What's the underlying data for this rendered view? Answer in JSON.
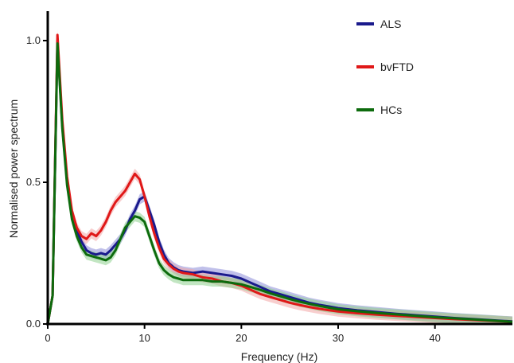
{
  "chart_data": {
    "type": "line",
    "title": "",
    "xlabel": "Frequency (Hz)",
    "ylabel": "Normalised power spectrum",
    "xlim": [
      0,
      48
    ],
    "ylim": [
      0,
      1.1
    ],
    "x_ticks": [
      0,
      10,
      20,
      30,
      40
    ],
    "x_tick_labels": [
      "0",
      "10",
      "20",
      "30",
      "40"
    ],
    "y_ticks": [
      0.0,
      0.5,
      1.0
    ],
    "y_tick_labels": [
      "0.0",
      "0.5",
      "1.0"
    ],
    "grid": false,
    "legend_position": "top-right",
    "series": [
      {
        "name": "ALS",
        "color": "#1a1a8c",
        "band_color": "#8c8cd9",
        "x": [
          0,
          0.5,
          1,
          1.5,
          2,
          2.5,
          3,
          3.5,
          4,
          4.5,
          5,
          5.5,
          6,
          6.5,
          7,
          7.5,
          8,
          8.5,
          9,
          9.5,
          10,
          10.5,
          11,
          11.5,
          12,
          12.5,
          13,
          13.5,
          14,
          15,
          16,
          17,
          18,
          19,
          20,
          21,
          22,
          23,
          24,
          25,
          26,
          27,
          28,
          29,
          30,
          32,
          34,
          36,
          38,
          40,
          42,
          44,
          46,
          48
        ],
        "values": [
          0.0,
          0.1,
          1.0,
          0.7,
          0.5,
          0.38,
          0.33,
          0.29,
          0.26,
          0.25,
          0.245,
          0.25,
          0.245,
          0.26,
          0.28,
          0.3,
          0.33,
          0.37,
          0.4,
          0.44,
          0.45,
          0.4,
          0.35,
          0.29,
          0.245,
          0.215,
          0.2,
          0.19,
          0.185,
          0.18,
          0.185,
          0.18,
          0.175,
          0.17,
          0.16,
          0.145,
          0.13,
          0.115,
          0.105,
          0.095,
          0.085,
          0.075,
          0.068,
          0.062,
          0.056,
          0.048,
          0.042,
          0.036,
          0.031,
          0.026,
          0.021,
          0.017,
          0.013,
          0.009
        ]
      },
      {
        "name": "bvFTD",
        "color": "#e01818",
        "band_color": "#f2a6a6",
        "x": [
          0,
          0.5,
          1,
          1.5,
          2,
          2.5,
          3,
          3.5,
          4,
          4.5,
          5,
          5.5,
          6,
          6.5,
          7,
          7.5,
          8,
          8.5,
          9,
          9.5,
          10,
          10.5,
          11,
          11.5,
          12,
          12.5,
          13,
          13.5,
          14,
          15,
          16,
          17,
          18,
          19,
          20,
          21,
          22,
          23,
          24,
          25,
          26,
          27,
          28,
          29,
          30,
          32,
          34,
          36,
          38,
          40,
          42,
          44,
          46,
          48
        ],
        "values": [
          0.0,
          0.1,
          1.02,
          0.72,
          0.52,
          0.4,
          0.34,
          0.31,
          0.3,
          0.32,
          0.31,
          0.33,
          0.36,
          0.4,
          0.43,
          0.45,
          0.47,
          0.5,
          0.53,
          0.51,
          0.45,
          0.38,
          0.32,
          0.27,
          0.23,
          0.21,
          0.195,
          0.185,
          0.18,
          0.175,
          0.165,
          0.16,
          0.15,
          0.145,
          0.135,
          0.12,
          0.105,
          0.095,
          0.085,
          0.075,
          0.067,
          0.06,
          0.054,
          0.049,
          0.044,
          0.038,
          0.033,
          0.029,
          0.025,
          0.021,
          0.017,
          0.014,
          0.011,
          0.008
        ]
      },
      {
        "name": "HCs",
        "color": "#0d6b0d",
        "band_color": "#8fd18f",
        "x": [
          0,
          0.5,
          1,
          1.5,
          2,
          2.5,
          3,
          3.5,
          4,
          4.5,
          5,
          5.5,
          6,
          6.5,
          7,
          7.5,
          8,
          8.5,
          9,
          9.5,
          10,
          10.5,
          11,
          11.5,
          12,
          12.5,
          13,
          13.5,
          14,
          15,
          16,
          17,
          18,
          19,
          20,
          21,
          22,
          23,
          24,
          25,
          26,
          27,
          28,
          29,
          30,
          32,
          34,
          36,
          38,
          40,
          42,
          44,
          46,
          48
        ],
        "values": [
          0.0,
          0.1,
          0.99,
          0.69,
          0.49,
          0.37,
          0.31,
          0.27,
          0.245,
          0.24,
          0.235,
          0.23,
          0.225,
          0.235,
          0.26,
          0.3,
          0.34,
          0.36,
          0.38,
          0.375,
          0.36,
          0.31,
          0.26,
          0.215,
          0.19,
          0.175,
          0.165,
          0.16,
          0.155,
          0.155,
          0.155,
          0.15,
          0.15,
          0.145,
          0.14,
          0.13,
          0.12,
          0.108,
          0.098,
          0.088,
          0.079,
          0.071,
          0.064,
          0.058,
          0.052,
          0.045,
          0.039,
          0.034,
          0.029,
          0.024,
          0.02,
          0.016,
          0.012,
          0.008
        ]
      }
    ]
  }
}
